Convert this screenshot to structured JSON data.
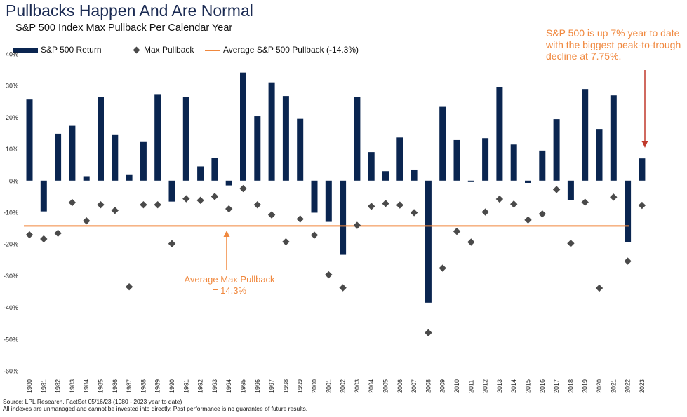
{
  "title": "Pullbacks Happen And Are Normal",
  "subtitle": "S&P 500 Index Max Pullback Per Calendar Year",
  "annotations": {
    "callout": "S&P 500 is up 7% year to date with the biggest peak-to-trough decline at 7.75%.",
    "average_note": "Average Max Pullback = 14.3%"
  },
  "source": {
    "line1": "Source: LPL Research, FactSet 05/16/23 (1980 - 2023 year to date)",
    "line2": "All indexes are unmanaged and cannot be invested into directly. Past performance is no guarantee of future results."
  },
  "colors": {
    "bar": "#0a2550",
    "marker": "#4a4a4a",
    "average": "#f0883e",
    "title": "#1a2a52"
  },
  "chart_data": {
    "type": "bar",
    "legend_position": "top-left",
    "grid": false,
    "ylim": [
      -60,
      40
    ],
    "yticks": [
      40,
      30,
      20,
      10,
      0,
      -10,
      -20,
      -30,
      -40,
      -50,
      -60
    ],
    "ytick_labels": [
      "40%",
      "30%",
      "20%",
      "10%",
      "0%",
      "-10%",
      "-20%",
      "-30%",
      "-40%",
      "-50%",
      "-60%"
    ],
    "categories": [
      "1980",
      "1981",
      "1982",
      "1983",
      "1984",
      "1985",
      "1986",
      "1987",
      "1988",
      "1989",
      "1990",
      "1991",
      "1992",
      "1993",
      "1994",
      "1995",
      "1996",
      "1997",
      "1998",
      "1999",
      "2000",
      "2001",
      "2002",
      "2003",
      "2004",
      "2005",
      "2006",
      "2007",
      "2008",
      "2009",
      "2010",
      "2011",
      "2012",
      "2013",
      "2014",
      "2015",
      "2016",
      "2017",
      "2018",
      "2019",
      "2020",
      "2021",
      "2022",
      "2023"
    ],
    "series": [
      {
        "name": "S&P 500 Return",
        "type": "bar",
        "values": [
          25.8,
          -9.7,
          14.8,
          17.3,
          1.4,
          26.3,
          14.6,
          2.0,
          12.4,
          27.3,
          -6.6,
          26.3,
          4.5,
          7.1,
          -1.5,
          34.1,
          20.3,
          31.0,
          26.7,
          19.5,
          -10.1,
          -13.0,
          -23.4,
          26.4,
          9.0,
          3.0,
          13.6,
          3.5,
          -38.5,
          23.5,
          12.8,
          0.0,
          13.4,
          29.6,
          11.4,
          -0.7,
          9.5,
          19.4,
          -6.2,
          28.9,
          16.3,
          26.9,
          -19.4,
          7.0
        ]
      },
      {
        "name": "Max Pullback",
        "type": "scatter",
        "values": [
          -17.1,
          -18.4,
          -16.6,
          -6.9,
          -12.7,
          -7.6,
          -9.4,
          -33.5,
          -7.6,
          -7.6,
          -19.9,
          -5.7,
          -6.2,
          -5.0,
          -8.9,
          -2.5,
          -7.6,
          -10.8,
          -19.3,
          -12.1,
          -17.2,
          -29.7,
          -33.8,
          -14.1,
          -8.1,
          -7.2,
          -7.7,
          -10.1,
          -48.0,
          -27.6,
          -16.0,
          -19.4,
          -9.9,
          -5.8,
          -7.4,
          -12.4,
          -10.5,
          -2.8,
          -19.8,
          -6.8,
          -33.9,
          -5.2,
          -25.4,
          -7.8
        ]
      },
      {
        "name": "Average S&P 500 Pullback (-14.3%)",
        "type": "line",
        "value": -14.3
      }
    ]
  }
}
